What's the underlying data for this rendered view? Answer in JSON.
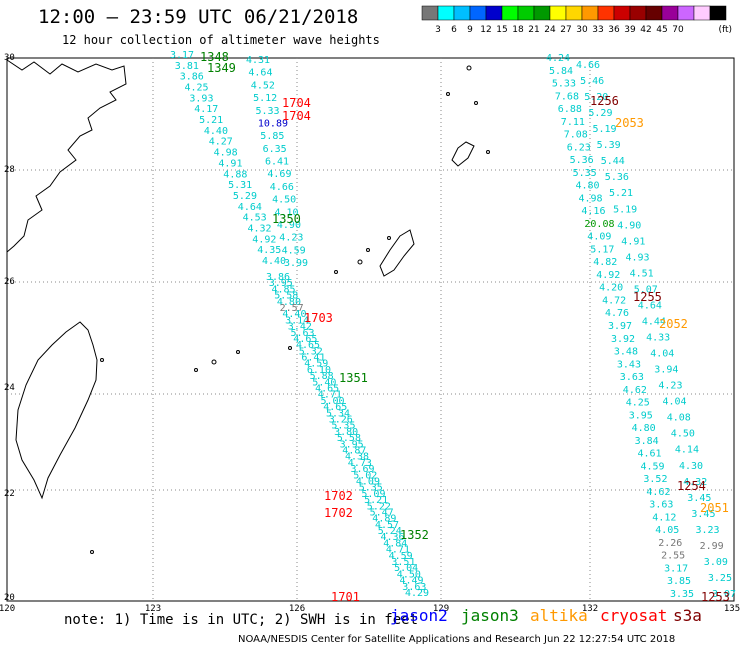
{
  "title": "12:00 – 23:59 UTC 06/21/2018",
  "subtitle": "12 hour collection of altimeter wave heights",
  "colorbar": {
    "unit": "(ft)",
    "ticks": [
      "3",
      "6",
      "9",
      "12",
      "15",
      "18",
      "21",
      "24",
      "27",
      "30",
      "33",
      "36",
      "39",
      "42",
      "45",
      "70"
    ],
    "colors": [
      "#777777",
      "#00ffff",
      "#00bfff",
      "#0066ff",
      "#0000cc",
      "#00ff00",
      "#00cc00",
      "#009900",
      "#ffff00",
      "#ffd700",
      "#ff9900",
      "#ff3300",
      "#cc0000",
      "#990000",
      "#660000",
      "#990099",
      "#cc66ff",
      "#ffccff",
      "#000000"
    ]
  },
  "axes": {
    "x_labels": [
      "120",
      "123",
      "126",
      "129",
      "132",
      "135"
    ],
    "y_labels": [
      "30",
      "28",
      "26",
      "24",
      "22",
      "20"
    ]
  },
  "legend_colors": {
    "jason2": "#0000ff",
    "jason3": "#008000",
    "altika": "#ff9900",
    "cryosat": "#ff0000",
    "s3a": "#800000"
  },
  "footer": {
    "note": "note: 1) Time is in UTC; 2) SWH is in feet",
    "satellites": [
      "jason2",
      "jason3",
      "altika",
      "cryosat",
      "s3a"
    ],
    "credit": "NOAA/NESDIS Center for Satellite Applications and Research   Jun 22 12:27:54 UTC 2018"
  },
  "track_ids": [
    {
      "text": "1348",
      "color": "#008000"
    },
    {
      "text": "1349",
      "color": "#008000"
    },
    {
      "text": "1350",
      "color": "#008000"
    },
    {
      "text": "1351",
      "color": "#008000"
    },
    {
      "text": "1352",
      "color": "#008000"
    },
    {
      "text": "1704",
      "color": "#ff0000"
    },
    {
      "text": "1704",
      "color": "#ff0000"
    },
    {
      "text": "1703",
      "color": "#ff0000"
    },
    {
      "text": "1702",
      "color": "#ff0000"
    },
    {
      "text": "1702",
      "color": "#ff0000"
    },
    {
      "text": "1701",
      "color": "#ff0000"
    },
    {
      "text": "1256",
      "color": "#800000"
    },
    {
      "text": "1255",
      "color": "#800000"
    },
    {
      "text": "1254",
      "color": "#800000"
    },
    {
      "text": "1253",
      "color": "#800000"
    },
    {
      "text": "2053",
      "color": "#ff9900"
    },
    {
      "text": "2052",
      "color": "#ff9900"
    },
    {
      "text": "2051",
      "color": "#ff9900"
    }
  ],
  "swh_values": [
    {
      "v": "3.17",
      "c": "#00cccc"
    },
    {
      "v": "3.81",
      "c": "#00cccc"
    },
    {
      "v": "3.86",
      "c": "#00cccc"
    },
    {
      "v": "4.25",
      "c": "#00cccc"
    },
    {
      "v": "3.93",
      "c": "#00cccc"
    },
    {
      "v": "4.17",
      "c": "#00cccc"
    },
    {
      "v": "5.21",
      "c": "#00cccc"
    },
    {
      "v": "4.40",
      "c": "#00cccc"
    },
    {
      "v": "4.27",
      "c": "#00cccc"
    },
    {
      "v": "4.98",
      "c": "#00cccc"
    },
    {
      "v": "4.91",
      "c": "#00cccc"
    },
    {
      "v": "4.88",
      "c": "#00cccc"
    },
    {
      "v": "5.31",
      "c": "#00cccc"
    },
    {
      "v": "5.29",
      "c": "#00cccc"
    },
    {
      "v": "4.64",
      "c": "#00cccc"
    },
    {
      "v": "4.53",
      "c": "#00cccc"
    },
    {
      "v": "4.32",
      "c": "#00cccc"
    },
    {
      "v": "4.92",
      "c": "#00cccc"
    },
    {
      "v": "4.35",
      "c": "#00cccc"
    },
    {
      "v": "4.40",
      "c": "#00cccc"
    },
    {
      "v": "4.31",
      "c": "#00cccc"
    },
    {
      "v": "4.64",
      "c": "#00cccc"
    },
    {
      "v": "4.52",
      "c": "#00cccc"
    },
    {
      "v": "5.12",
      "c": "#00cccc"
    },
    {
      "v": "5.33",
      "c": "#00cccc"
    },
    {
      "v": "10.89",
      "c": "#0000cc"
    },
    {
      "v": "5.85",
      "c": "#00cccc"
    },
    {
      "v": "6.35",
      "c": "#00cccc"
    },
    {
      "v": "6.41",
      "c": "#00cccc"
    },
    {
      "v": "4.69",
      "c": "#00cccc"
    },
    {
      "v": "4.66",
      "c": "#00cccc"
    },
    {
      "v": "4.50",
      "c": "#00cccc"
    },
    {
      "v": "4.10",
      "c": "#00cccc"
    },
    {
      "v": "4.90",
      "c": "#00cccc"
    },
    {
      "v": "4.23",
      "c": "#00cccc"
    },
    {
      "v": "4.59",
      "c": "#00cccc"
    },
    {
      "v": "3.99",
      "c": "#00cccc"
    },
    {
      "v": "3.86",
      "c": "#00cccc"
    },
    {
      "v": "3.95",
      "c": "#00cccc"
    },
    {
      "v": "4.85",
      "c": "#00cccc"
    },
    {
      "v": "5.58",
      "c": "#00cccc"
    },
    {
      "v": "4.80",
      "c": "#00cccc"
    },
    {
      "v": "2.57",
      "c": "#777777"
    },
    {
      "v": "4.40",
      "c": "#00cccc"
    },
    {
      "v": "3.14",
      "c": "#00cccc"
    },
    {
      "v": "3.42",
      "c": "#00cccc"
    },
    {
      "v": "5.63",
      "c": "#00cccc"
    },
    {
      "v": "4.65",
      "c": "#00cccc"
    },
    {
      "v": "4.65",
      "c": "#00cccc"
    },
    {
      "v": "5.32",
      "c": "#00cccc"
    },
    {
      "v": "6.41",
      "c": "#00cccc"
    },
    {
      "v": "4.59",
      "c": "#00cccc"
    },
    {
      "v": "6.10",
      "c": "#00cccc"
    },
    {
      "v": "5.88",
      "c": "#00cccc"
    },
    {
      "v": "5.40",
      "c": "#00cccc"
    },
    {
      "v": "4.65",
      "c": "#00cccc"
    },
    {
      "v": "4.71",
      "c": "#00cccc"
    },
    {
      "v": "5.00",
      "c": "#00cccc"
    },
    {
      "v": "4.65",
      "c": "#00cccc"
    },
    {
      "v": "5.34",
      "c": "#00cccc"
    },
    {
      "v": "3.26",
      "c": "#00cccc"
    },
    {
      "v": "5.35",
      "c": "#00cccc"
    },
    {
      "v": "3.80",
      "c": "#00cccc"
    },
    {
      "v": "5.58",
      "c": "#00cccc"
    },
    {
      "v": "3.95",
      "c": "#00cccc"
    },
    {
      "v": "4.87",
      "c": "#00cccc"
    },
    {
      "v": "4.38",
      "c": "#00cccc"
    },
    {
      "v": "4.73",
      "c": "#00cccc"
    },
    {
      "v": "3.69",
      "c": "#00cccc"
    },
    {
      "v": "5.02",
      "c": "#00cccc"
    },
    {
      "v": "4.09",
      "c": "#00cccc"
    },
    {
      "v": "5.35",
      "c": "#00cccc"
    },
    {
      "v": "5.09",
      "c": "#00cccc"
    },
    {
      "v": "5.21",
      "c": "#00cccc"
    },
    {
      "v": "5.22",
      "c": "#00cccc"
    },
    {
      "v": "5.47",
      "c": "#00cccc"
    },
    {
      "v": "4.89",
      "c": "#00cccc"
    },
    {
      "v": "4.57",
      "c": "#00cccc"
    },
    {
      "v": "5.24",
      "c": "#00cccc"
    },
    {
      "v": "4.36",
      "c": "#00cccc"
    },
    {
      "v": "4.84",
      "c": "#00cccc"
    },
    {
      "v": "4.71",
      "c": "#00cccc"
    },
    {
      "v": "4.59",
      "c": "#00cccc"
    },
    {
      "v": "3.51",
      "c": "#00cccc"
    },
    {
      "v": "5.04",
      "c": "#00cccc"
    },
    {
      "v": "4.50",
      "c": "#00cccc"
    },
    {
      "v": "4.49",
      "c": "#00cccc"
    },
    {
      "v": "3.63",
      "c": "#00cccc"
    },
    {
      "v": "4.29",
      "c": "#00cccc"
    },
    {
      "v": "4.24",
      "c": "#00cccc"
    },
    {
      "v": "5.84",
      "c": "#00cccc"
    },
    {
      "v": "5.33",
      "c": "#00cccc"
    },
    {
      "v": "7.68",
      "c": "#00cccc"
    },
    {
      "v": "6.88",
      "c": "#00cccc"
    },
    {
      "v": "7.11",
      "c": "#00cccc"
    },
    {
      "v": "7.08",
      "c": "#00cccc"
    },
    {
      "v": "6.23",
      "c": "#00cccc"
    },
    {
      "v": "5.36",
      "c": "#00cccc"
    },
    {
      "v": "5.35",
      "c": "#00cccc"
    },
    {
      "v": "4.80",
      "c": "#00cccc"
    },
    {
      "v": "4.98",
      "c": "#00cccc"
    },
    {
      "v": "4.16",
      "c": "#00cccc"
    },
    {
      "v": "20.08",
      "c": "#009900"
    },
    {
      "v": "4.09",
      "c": "#00cccc"
    },
    {
      "v": "5.17",
      "c": "#00cccc"
    },
    {
      "v": "4.82",
      "c": "#00cccc"
    },
    {
      "v": "4.92",
      "c": "#00cccc"
    },
    {
      "v": "4.20",
      "c": "#00cccc"
    },
    {
      "v": "4.72",
      "c": "#00cccc"
    },
    {
      "v": "4.76",
      "c": "#00cccc"
    },
    {
      "v": "3.97",
      "c": "#00cccc"
    },
    {
      "v": "3.92",
      "c": "#00cccc"
    },
    {
      "v": "3.48",
      "c": "#00cccc"
    },
    {
      "v": "3.43",
      "c": "#00cccc"
    },
    {
      "v": "3.63",
      "c": "#00cccc"
    },
    {
      "v": "4.62",
      "c": "#00cccc"
    },
    {
      "v": "4.25",
      "c": "#00cccc"
    },
    {
      "v": "3.95",
      "c": "#00cccc"
    },
    {
      "v": "4.80",
      "c": "#00cccc"
    },
    {
      "v": "3.84",
      "c": "#00cccc"
    },
    {
      "v": "4.61",
      "c": "#00cccc"
    },
    {
      "v": "4.59",
      "c": "#00cccc"
    },
    {
      "v": "3.52",
      "c": "#00cccc"
    },
    {
      "v": "4.62",
      "c": "#00cccc"
    },
    {
      "v": "3.63",
      "c": "#00cccc"
    },
    {
      "v": "4.12",
      "c": "#00cccc"
    },
    {
      "v": "4.05",
      "c": "#00cccc"
    },
    {
      "v": "2.26",
      "c": "#777777"
    },
    {
      "v": "2.55",
      "c": "#777777"
    },
    {
      "v": "3.17",
      "c": "#00cccc"
    },
    {
      "v": "3.85",
      "c": "#00cccc"
    },
    {
      "v": "3.35",
      "c": "#00cccc"
    },
    {
      "v": "4.66",
      "c": "#00cccc"
    },
    {
      "v": "5.46",
      "c": "#00cccc"
    },
    {
      "v": "5.20",
      "c": "#00cccc"
    },
    {
      "v": "5.29",
      "c": "#00cccc"
    },
    {
      "v": "5.19",
      "c": "#00cccc"
    },
    {
      "v": "5.39",
      "c": "#00cccc"
    },
    {
      "v": "5.44",
      "c": "#00cccc"
    },
    {
      "v": "5.36",
      "c": "#00cccc"
    },
    {
      "v": "5.21",
      "c": "#00cccc"
    },
    {
      "v": "5.19",
      "c": "#00cccc"
    },
    {
      "v": "4.90",
      "c": "#00cccc"
    },
    {
      "v": "4.91",
      "c": "#00cccc"
    },
    {
      "v": "4.93",
      "c": "#00cccc"
    },
    {
      "v": "4.51",
      "c": "#00cccc"
    },
    {
      "v": "5.07",
      "c": "#00cccc"
    },
    {
      "v": "4.64",
      "c": "#00cccc"
    },
    {
      "v": "4.44",
      "c": "#00cccc"
    },
    {
      "v": "4.33",
      "c": "#00cccc"
    },
    {
      "v": "4.04",
      "c": "#00cccc"
    },
    {
      "v": "3.94",
      "c": "#00cccc"
    },
    {
      "v": "4.23",
      "c": "#00cccc"
    },
    {
      "v": "4.04",
      "c": "#00cccc"
    },
    {
      "v": "4.08",
      "c": "#00cccc"
    },
    {
      "v": "4.50",
      "c": "#00cccc"
    },
    {
      "v": "4.14",
      "c": "#00cccc"
    },
    {
      "v": "4.30",
      "c": "#00cccc"
    },
    {
      "v": "4.32",
      "c": "#00cccc"
    },
    {
      "v": "3.45",
      "c": "#00cccc"
    },
    {
      "v": "3.45",
      "c": "#00cccc"
    },
    {
      "v": "3.23",
      "c": "#00cccc"
    },
    {
      "v": "2.99",
      "c": "#777777"
    },
    {
      "v": "3.09",
      "c": "#00cccc"
    },
    {
      "v": "3.25",
      "c": "#00cccc"
    },
    {
      "v": "3.07",
      "c": "#00cccc"
    },
    {
      "v": "4.22",
      "c": "#00cccc"
    }
  ]
}
